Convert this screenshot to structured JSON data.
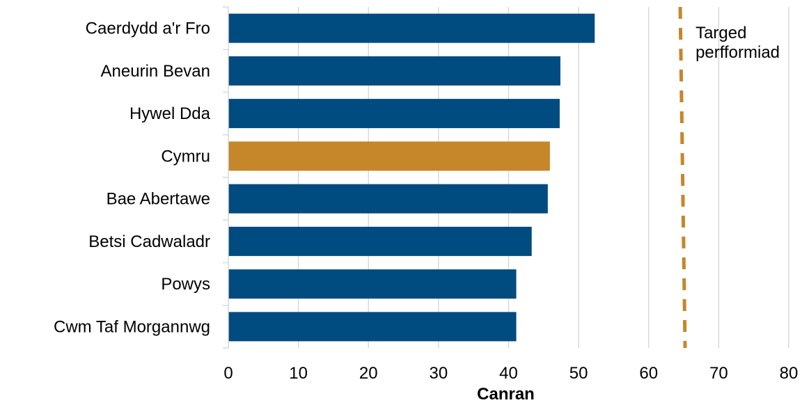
{
  "chart_data": {
    "type": "bar",
    "orientation": "horizontal",
    "categories": [
      "Caerdydd a'r Fro",
      "Aneurin Bevan",
      "Hywel Dda",
      "Cymru",
      "Bae Abertawe",
      "Betsi Cadwaladr",
      "Powys",
      "Cwm Taf Morgannwg"
    ],
    "values": [
      52.3,
      47.4,
      47.3,
      45.9,
      45.6,
      43.3,
      41.1,
      41.1
    ],
    "highlight_category": "Cymru",
    "xlabel": "Canran",
    "ylabel": "",
    "xlim": [
      0,
      80
    ],
    "xticks": [
      "0",
      "10",
      "20",
      "30",
      "40",
      "50",
      "60",
      "70",
      "80"
    ],
    "grid": "vertical",
    "target": {
      "value": 65,
      "label_lines": [
        "Targed",
        "perfformiad"
      ]
    },
    "colors": {
      "bar": "#004b7f",
      "highlight": "#c6862a",
      "target_line": "#c6862a",
      "grid": "#d9d9d9",
      "axis": "#d9d9d9"
    }
  }
}
